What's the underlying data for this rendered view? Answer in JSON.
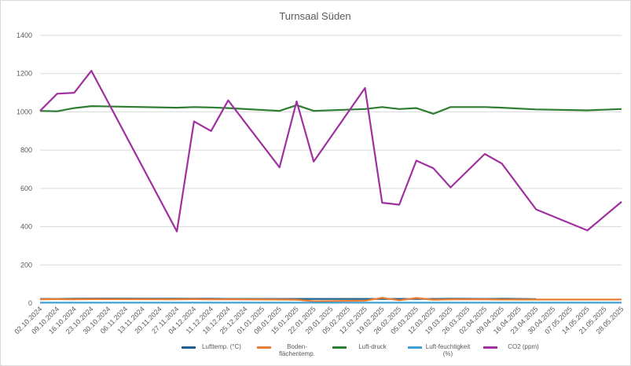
{
  "chart_data": {
    "type": "line",
    "title": "Turnsaal Süden",
    "x": [
      "02.10.2024",
      "09.10.2024",
      "16.10.2024",
      "23.10.2024",
      "27.11.2024",
      "04.12.2024",
      "11.12.2024",
      "18.12.2024",
      "08.01.2025",
      "15.01.2025",
      "22.01.2025",
      "12.02.2025",
      "19.02.2025",
      "26.02.2025",
      "05.03.2025",
      "12.03.2025",
      "19.03.2025",
      "02.04.2025",
      "09.04.2025",
      "23.04.2025",
      "14.05.2025",
      "28.05.2025"
    ],
    "xlim": [
      "02.10.2024",
      "28.05.2025"
    ],
    "xticks": [
      "02.10.2024",
      "09.10.2024",
      "16.10.2024",
      "23.10.2024",
      "30.10.2024",
      "06.11.2024",
      "13.11.2024",
      "20.11.2024",
      "27.11.2024",
      "04.12.2024",
      "11.12.2024",
      "18.12.2024",
      "25.12.2024",
      "01.01.2025",
      "08.01.2025",
      "15.01.2025",
      "22.01.2025",
      "29.01.2025",
      "05.02.2025",
      "12.02.2025",
      "19.02.2025",
      "26.02.2025",
      "05.03.2025",
      "12.03.2025",
      "19.03.2025",
      "26.03.2025",
      "02.04.2025",
      "09.04.2025",
      "16.04.2025",
      "23.04.2025",
      "30.04.2025",
      "07.05.2025",
      "14.05.2025",
      "21.05.2025",
      "28.05.2025"
    ],
    "ylim": [
      0,
      1400
    ],
    "yticks": [
      0,
      200,
      400,
      600,
      800,
      1000,
      1200,
      1400
    ],
    "grid": true,
    "legend": "bottom",
    "series": [
      {
        "name": "Lufttemp. (°C)",
        "color": "#1f5f8b",
        "values": [
          22,
          22,
          23,
          24,
          23,
          23,
          23,
          22,
          22,
          22,
          22,
          22,
          22,
          22,
          22,
          22,
          23,
          22,
          23,
          21,
          null,
          null
        ]
      },
      {
        "name": "Boden-flächentemp.",
        "color": "#ed7d31",
        "values": [
          20,
          21,
          20,
          21,
          20,
          21,
          20,
          20,
          19,
          18,
          10,
          13,
          28,
          15,
          27,
          18,
          20,
          20,
          19,
          19,
          19,
          19
        ]
      },
      {
        "name": "Luft-druck",
        "color": "#2e7d32",
        "values": [
          1005,
          1003,
          1020,
          1030,
          1022,
          1025,
          1023,
          1020,
          1005,
          1035,
          1005,
          1015,
          1025,
          1015,
          1020,
          990,
          1025,
          1025,
          1022,
          1013,
          1008,
          1015
        ]
      },
      {
        "name": "Luft-feuchtigkeit (%)",
        "color": "#3aa0d8",
        "values": [
          3,
          3,
          3,
          3,
          3,
          3,
          3,
          3,
          3,
          3,
          3,
          3,
          3,
          3,
          3,
          3,
          3,
          3,
          3,
          3,
          3,
          3
        ]
      },
      {
        "name": "CO2 (ppm)",
        "color": "#a030a0",
        "values": [
          1005,
          1095,
          1100,
          1215,
          375,
          950,
          900,
          1060,
          710,
          1055,
          740,
          1125,
          525,
          515,
          745,
          705,
          605,
          780,
          730,
          490,
          380,
          530
        ]
      }
    ]
  }
}
